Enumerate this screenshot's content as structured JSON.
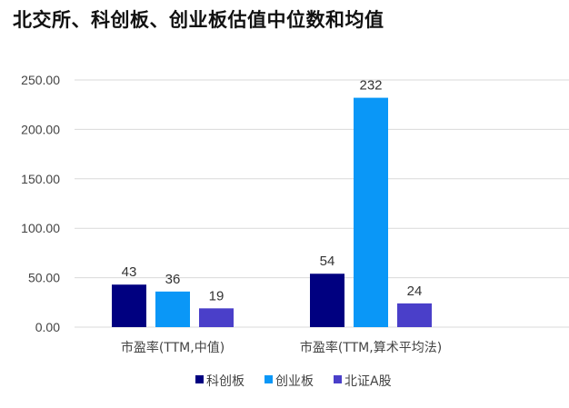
{
  "chart_data": {
    "type": "bar",
    "title": "北交所、科创板、创业板估值中位数和均值",
    "categories": [
      "市盈率(TTM,中值)",
      "市盈率(TTM,算术平均法)"
    ],
    "series": [
      {
        "name": "科创板",
        "values": [
          43,
          54
        ],
        "color": "#000080"
      },
      {
        "name": "创业板",
        "values": [
          36,
          232
        ],
        "color": "#0A97F7"
      },
      {
        "name": "北证A股",
        "values": [
          19,
          24
        ],
        "color": "#4A3FC9"
      }
    ],
    "yticks": [
      "0.00",
      "50.00",
      "100.00",
      "150.00",
      "200.00",
      "250.00"
    ],
    "ylim": [
      0,
      250
    ],
    "grid": true,
    "legend": "bottom",
    "xlabel": "",
    "ylabel": ""
  }
}
